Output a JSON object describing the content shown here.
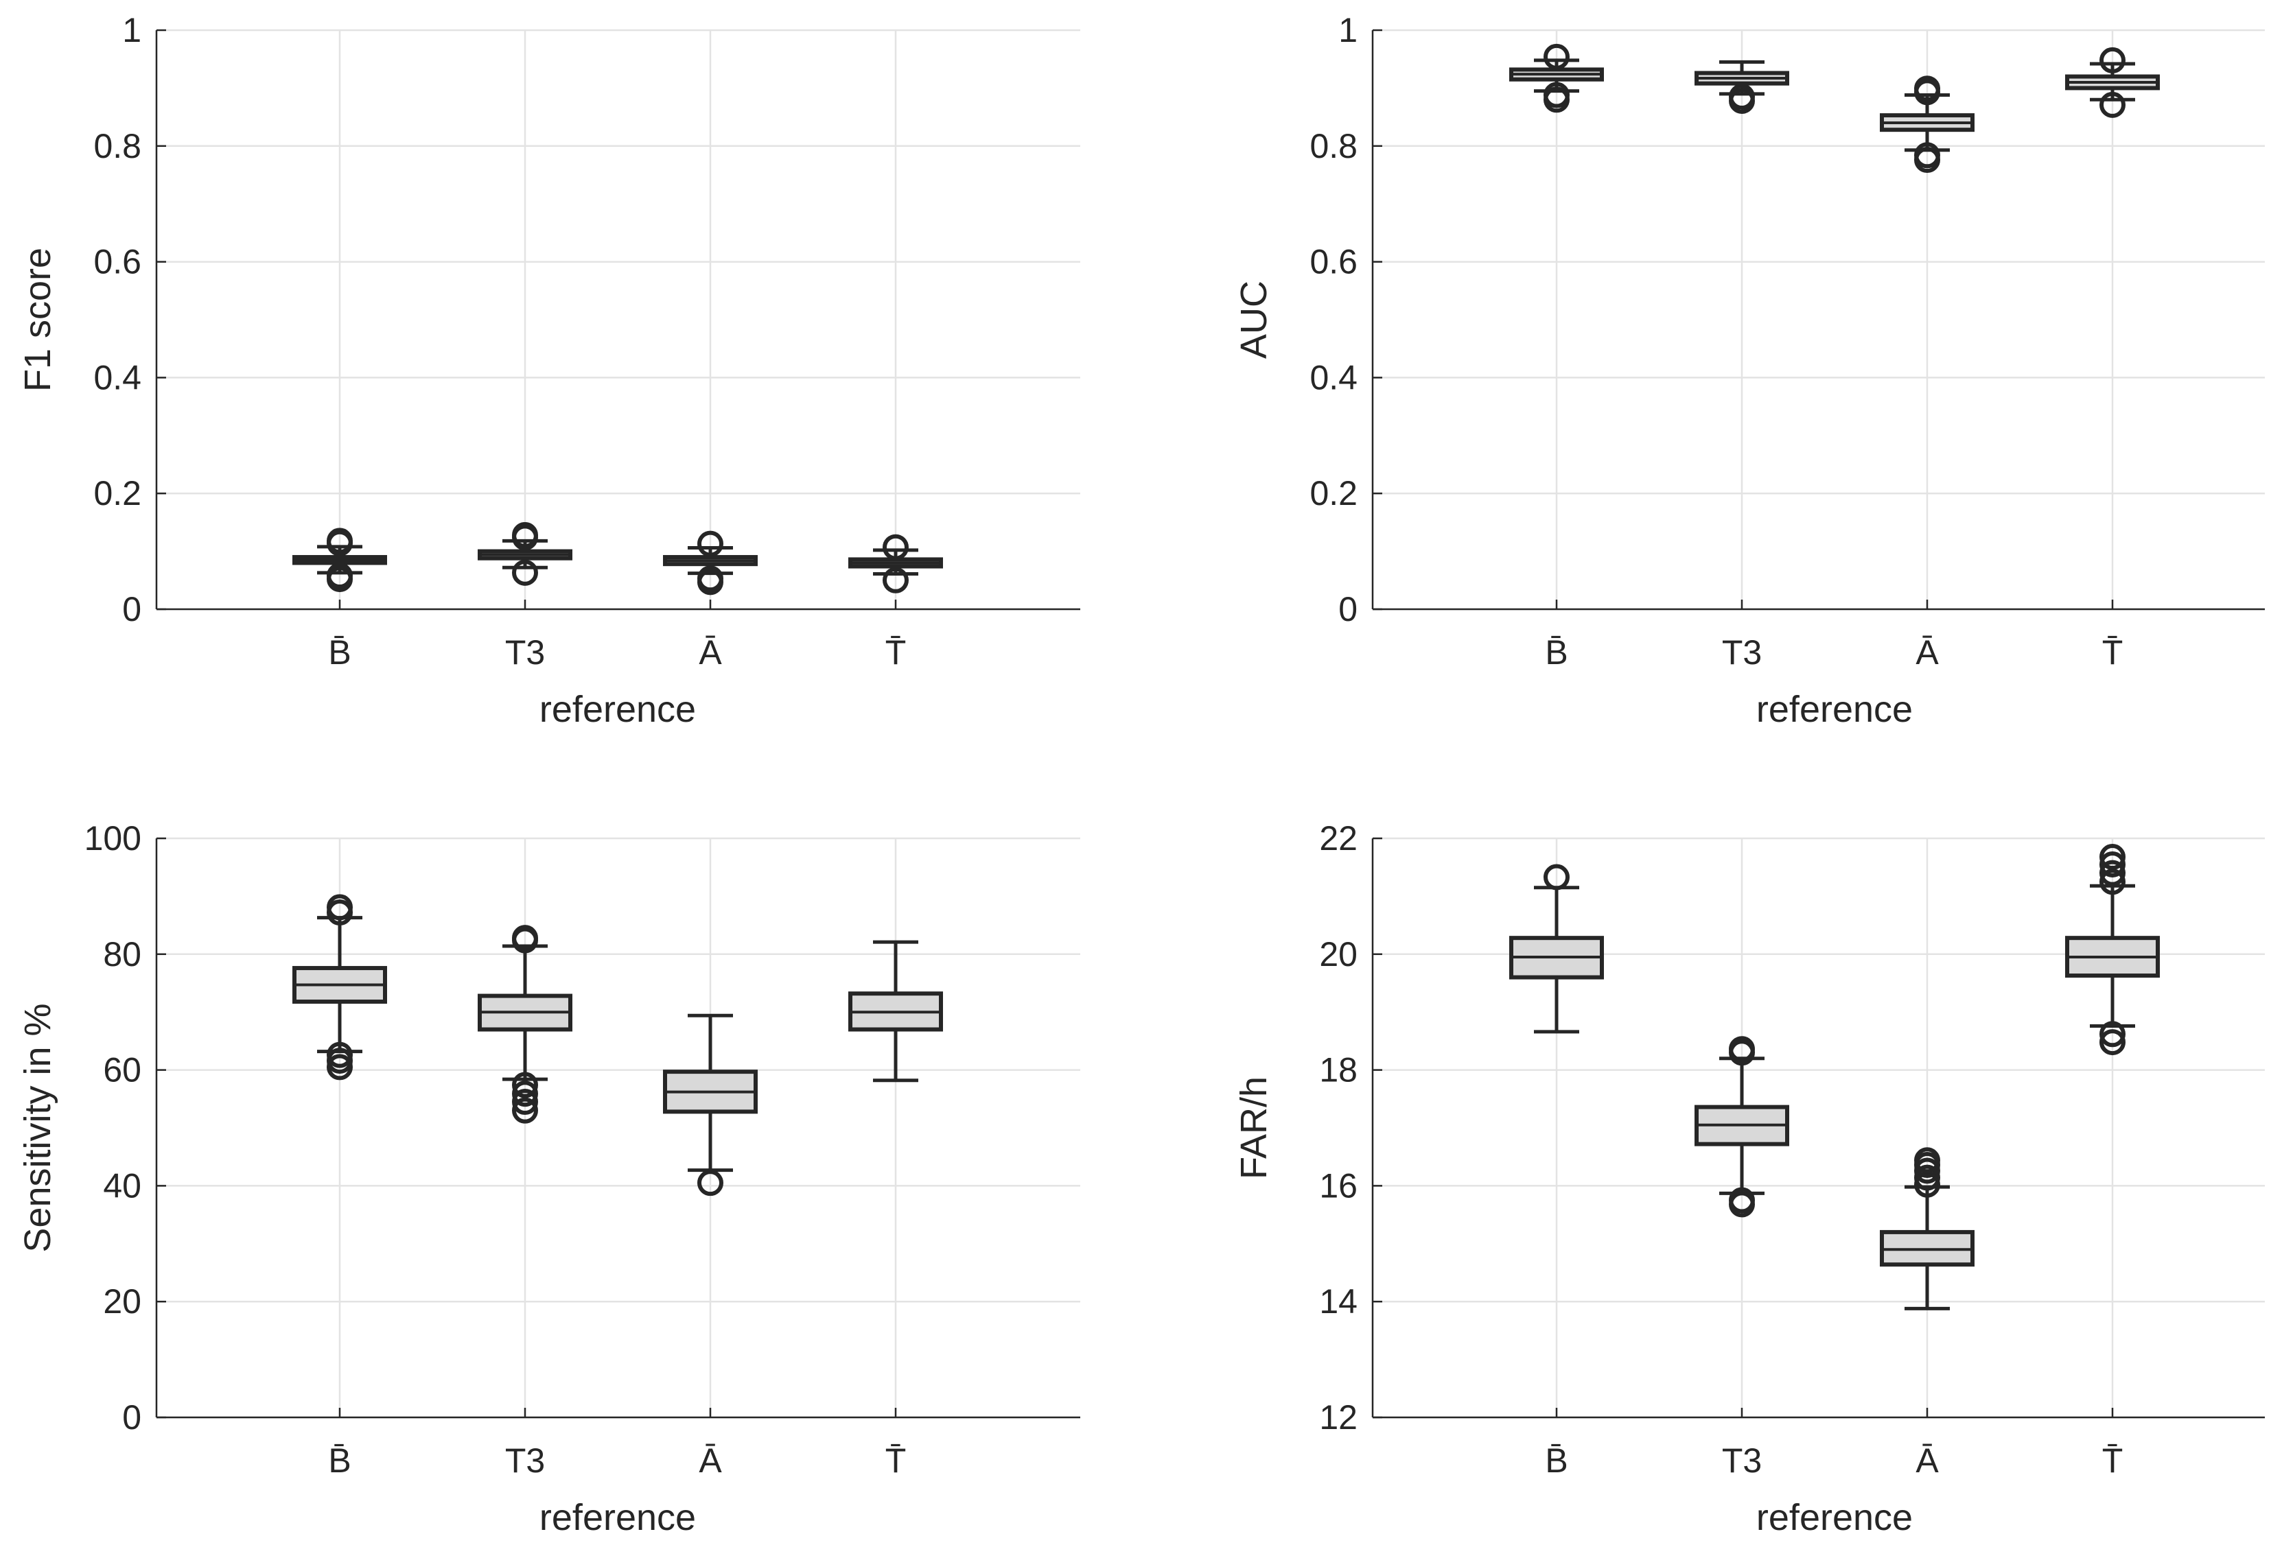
{
  "chart_data": [
    {
      "type": "box",
      "xlabel": "reference",
      "ylabel": "F1 score",
      "ylim": [
        0,
        1
      ],
      "yticks": [
        0,
        0.2,
        0.4,
        0.6,
        0.8,
        1
      ],
      "ytick_labels": [
        "0",
        "0.2",
        "0.4",
        "0.6",
        "0.8",
        "1"
      ],
      "grid": true,
      "categories": [
        "B̄",
        "T3",
        "Ā",
        "T̄"
      ],
      "boxes": [
        {
          "q1": 0.08,
          "median": 0.085,
          "q3": 0.09,
          "whisker_low": 0.063,
          "whisker_high": 0.108,
          "outliers": [
            0.052,
            0.058,
            0.114,
            0.118
          ]
        },
        {
          "q1": 0.088,
          "median": 0.094,
          "q3": 0.1,
          "whisker_low": 0.072,
          "whisker_high": 0.118,
          "outliers": [
            0.063,
            0.124,
            0.128
          ]
        },
        {
          "q1": 0.078,
          "median": 0.084,
          "q3": 0.09,
          "whisker_low": 0.062,
          "whisker_high": 0.106,
          "outliers": [
            0.047,
            0.053,
            0.113
          ]
        },
        {
          "q1": 0.074,
          "median": 0.08,
          "q3": 0.086,
          "whisker_low": 0.061,
          "whisker_high": 0.102,
          "outliers": [
            0.05,
            0.107
          ]
        }
      ]
    },
    {
      "type": "box",
      "xlabel": "reference",
      "ylabel": "AUC",
      "ylim": [
        0,
        1
      ],
      "yticks": [
        0,
        0.2,
        0.4,
        0.6,
        0.8,
        1
      ],
      "ytick_labels": [
        "0",
        "0.2",
        "0.4",
        "0.6",
        "0.8",
        "1"
      ],
      "grid": true,
      "categories": [
        "B̄",
        "T3",
        "Ā",
        "T̄"
      ],
      "boxes": [
        {
          "q1": 0.915,
          "median": 0.924,
          "q3": 0.932,
          "whisker_low": 0.895,
          "whisker_high": 0.948,
          "outliers": [
            0.88,
            0.888,
            0.954
          ]
        },
        {
          "q1": 0.908,
          "median": 0.917,
          "q3": 0.926,
          "whisker_low": 0.89,
          "whisker_high": 0.945,
          "outliers": [
            0.878,
            0.885
          ]
        },
        {
          "q1": 0.828,
          "median": 0.84,
          "q3": 0.853,
          "whisker_low": 0.793,
          "whisker_high": 0.888,
          "outliers": [
            0.776,
            0.784,
            0.893,
            0.899
          ]
        },
        {
          "q1": 0.9,
          "median": 0.91,
          "q3": 0.92,
          "whisker_low": 0.88,
          "whisker_high": 0.942,
          "outliers": [
            0.871,
            0.948
          ]
        }
      ]
    },
    {
      "type": "box",
      "xlabel": "reference",
      "ylabel": "Sensitivity in %",
      "ylim": [
        0,
        100
      ],
      "yticks": [
        0,
        20,
        40,
        60,
        80,
        100
      ],
      "ytick_labels": [
        "0",
        "20",
        "40",
        "60",
        "80",
        "100"
      ],
      "grid": true,
      "categories": [
        "B̄",
        "T3",
        "Ā",
        "T̄"
      ],
      "boxes": [
        {
          "q1": 71.8,
          "median": 74.7,
          "q3": 77.6,
          "whisker_low": 63.2,
          "whisker_high": 86.3,
          "outliers": [
            60.5,
            61.6,
            62.6,
            87.2,
            88.1
          ]
        },
        {
          "q1": 67.0,
          "median": 70.0,
          "q3": 72.8,
          "whisker_low": 58.4,
          "whisker_high": 81.4,
          "outliers": [
            53.0,
            54.5,
            55.9,
            57.4,
            82.4,
            82.8
          ]
        },
        {
          "q1": 52.8,
          "median": 56.2,
          "q3": 59.7,
          "whisker_low": 42.7,
          "whisker_high": 69.4,
          "outliers": [
            40.5
          ]
        },
        {
          "q1": 67.0,
          "median": 70.0,
          "q3": 73.2,
          "whisker_low": 58.2,
          "whisker_high": 82.1,
          "outliers": []
        }
      ]
    },
    {
      "type": "box",
      "xlabel": "reference",
      "ylabel": "FAR/h",
      "ylim": [
        12,
        22
      ],
      "yticks": [
        12,
        14,
        16,
        18,
        20,
        22
      ],
      "ytick_labels": [
        "12",
        "14",
        "16",
        "18",
        "20",
        "22"
      ],
      "grid": true,
      "categories": [
        "B̄",
        "T3",
        "Ā",
        "T̄"
      ],
      "boxes": [
        {
          "q1": 19.6,
          "median": 19.95,
          "q3": 20.28,
          "whisker_low": 18.66,
          "whisker_high": 21.15,
          "outliers": [
            21.33
          ]
        },
        {
          "q1": 16.72,
          "median": 17.05,
          "q3": 17.36,
          "whisker_low": 15.87,
          "whisker_high": 18.2,
          "outliers": [
            15.68,
            15.75,
            18.3,
            18.36
          ]
        },
        {
          "q1": 14.64,
          "median": 14.9,
          "q3": 15.2,
          "whisker_low": 13.88,
          "whisker_high": 15.98,
          "outliers": [
            16.02,
            16.14,
            16.26,
            16.36,
            16.44
          ]
        },
        {
          "q1": 19.63,
          "median": 19.95,
          "q3": 20.28,
          "whisker_low": 18.76,
          "whisker_high": 21.18,
          "outliers": [
            18.48,
            18.62,
            21.25,
            21.4,
            21.55,
            21.68
          ]
        }
      ]
    }
  ]
}
